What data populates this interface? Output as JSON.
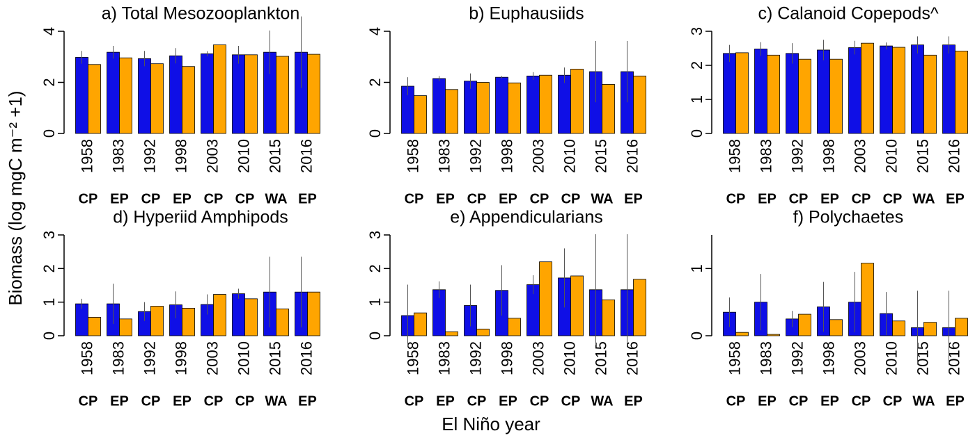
{
  "ylabel": "Biomass (log mgC m⁻² +1)",
  "xlabel": "El Niño year",
  "chart_data": [
    {
      "type": "bar",
      "title": "a) Total Mesozooplankton",
      "categories": [
        "1958",
        "1983",
        "1992",
        "1998",
        "2003",
        "2010",
        "2015",
        "2016"
      ],
      "groups": [
        "CP",
        "EP",
        "CP",
        "EP",
        "CP",
        "CP",
        "WA",
        "EP"
      ],
      "group_colors": {
        "CP": "#1a1ad6",
        "EP": "#ee2020",
        "WA": "#f5a00c"
      },
      "series": [
        {
          "color": "#0f0fe6",
          "values": [
            2.98,
            3.18,
            2.93,
            3.04,
            3.12,
            3.08,
            3.18,
            3.18
          ],
          "errors": [
            0.25,
            0.25,
            0.3,
            0.3,
            0.1,
            0.35,
            0.85,
            1.4
          ]
        },
        {
          "color": "#ffa500",
          "values": [
            2.7,
            2.96,
            2.73,
            2.62,
            3.47,
            3.08,
            3.02,
            3.1
          ]
        }
      ],
      "ylim": [
        0,
        4
      ],
      "yticks": [
        0,
        2,
        4
      ]
    },
    {
      "type": "bar",
      "title": "b) Euphausiids",
      "categories": [
        "1958",
        "1983",
        "1992",
        "1998",
        "2003",
        "2010",
        "2015",
        "2016"
      ],
      "groups": [
        "CP",
        "EP",
        "CP",
        "EP",
        "CP",
        "CP",
        "WA",
        "EP"
      ],
      "group_colors": {
        "CP": "#1a1ad6",
        "EP": "#ee2020",
        "WA": "#f5a00c"
      },
      "series": [
        {
          "color": "#0f0fe6",
          "values": [
            1.85,
            2.15,
            2.05,
            2.2,
            2.25,
            2.28,
            2.42,
            2.42
          ],
          "errors": [
            0.35,
            0.1,
            0.3,
            0.05,
            0.15,
            0.3,
            1.2,
            1.2
          ]
        },
        {
          "color": "#ffa500",
          "values": [
            1.48,
            1.72,
            2.0,
            1.98,
            2.28,
            2.52,
            1.92,
            2.25
          ]
        }
      ],
      "ylim": [
        0,
        4
      ],
      "yticks": [
        0,
        2,
        4
      ]
    },
    {
      "type": "bar",
      "title": "c) Calanoid Copepods^",
      "categories": [
        "1958",
        "1983",
        "1992",
        "1998",
        "2003",
        "2010",
        "2015",
        "2016"
      ],
      "groups": [
        "CP",
        "EP",
        "CP",
        "EP",
        "CP",
        "CP",
        "WA",
        "EP"
      ],
      "group_colors": {
        "CP": "#1a1ad6",
        "EP": "#ee2020",
        "WA": "#f5a00c"
      },
      "series": [
        {
          "color": "#0f0fe6",
          "values": [
            2.35,
            2.48,
            2.35,
            2.45,
            2.52,
            2.57,
            2.6,
            2.6
          ],
          "errors": [
            0.25,
            0.2,
            0.3,
            0.3,
            0.2,
            0.1,
            0.25,
            0.25
          ]
        },
        {
          "color": "#ffa500",
          "values": [
            2.37,
            2.3,
            2.18,
            2.18,
            2.65,
            2.53,
            2.3,
            2.42
          ]
        }
      ],
      "ylim": [
        0,
        3
      ],
      "yticks": [
        0,
        1,
        2,
        3
      ]
    },
    {
      "type": "bar",
      "title": "d) Hyperiid Amphipods",
      "categories": [
        "1958",
        "1983",
        "1992",
        "1998",
        "2003",
        "2010",
        "2015",
        "2016"
      ],
      "groups": [
        "CP",
        "EP",
        "CP",
        "EP",
        "CP",
        "CP",
        "WA",
        "EP"
      ],
      "group_colors": {
        "CP": "#1a1ad6",
        "EP": "#ee2020",
        "WA": "#f5a00c"
      },
      "series": [
        {
          "color": "#0f0fe6",
          "values": [
            0.95,
            0.95,
            0.72,
            0.92,
            0.93,
            1.25,
            1.3,
            1.3
          ],
          "errors": [
            0.15,
            0.6,
            0.28,
            0.4,
            0.3,
            0.15,
            1.05,
            1.05
          ]
        },
        {
          "color": "#ffa500",
          "values": [
            0.55,
            0.5,
            0.88,
            0.82,
            1.23,
            1.1,
            0.8,
            1.3
          ]
        }
      ],
      "ylim": [
        0,
        3
      ],
      "yticks": [
        0,
        1,
        2,
        3
      ]
    },
    {
      "type": "bar",
      "title": "e) Appendicularians",
      "categories": [
        "1958",
        "1983",
        "1992",
        "1998",
        "2003",
        "2010",
        "2015",
        "2016"
      ],
      "groups": [
        "CP",
        "EP",
        "CP",
        "EP",
        "CP",
        "CP",
        "WA",
        "EP"
      ],
      "group_colors": {
        "CP": "#1a1ad6",
        "EP": "#ee2020",
        "WA": "#f5a00c"
      },
      "series": [
        {
          "color": "#0f0fe6",
          "values": [
            0.6,
            1.37,
            0.9,
            1.35,
            1.52,
            1.72,
            1.37,
            1.37
          ],
          "errors": [
            0.92,
            0.25,
            0.62,
            0.75,
            0.28,
            0.88,
            1.65,
            1.65
          ]
        },
        {
          "color": "#ffa500",
          "values": [
            0.68,
            0.12,
            0.2,
            0.52,
            2.2,
            1.78,
            1.07,
            1.68
          ]
        }
      ],
      "ylim": [
        0,
        3
      ],
      "yticks": [
        0,
        1,
        2,
        3
      ]
    },
    {
      "type": "bar",
      "title": "f) Polychaetes",
      "categories": [
        "1958",
        "1983",
        "1992",
        "1998",
        "2003",
        "2010",
        "2015",
        "2016"
      ],
      "groups": [
        "CP",
        "EP",
        "CP",
        "EP",
        "CP",
        "CP",
        "WA",
        "EP"
      ],
      "group_colors": {
        "CP": "#1a1ad6",
        "EP": "#ee2020",
        "WA": "#f5a00c"
      },
      "series": [
        {
          "color": "#0f0fe6",
          "values": [
            0.35,
            0.5,
            0.25,
            0.43,
            0.5,
            0.33,
            0.12,
            0.12
          ],
          "errors": [
            0.22,
            0.42,
            0.12,
            0.37,
            0.45,
            0.32,
            0.55,
            0.55
          ]
        },
        {
          "color": "#ffa500",
          "values": [
            0.05,
            0.02,
            0.32,
            0.24,
            1.08,
            0.22,
            0.2,
            0.26
          ]
        }
      ],
      "ylim": [
        0,
        1.5
      ],
      "yticks": [
        0,
        1
      ]
    }
  ]
}
